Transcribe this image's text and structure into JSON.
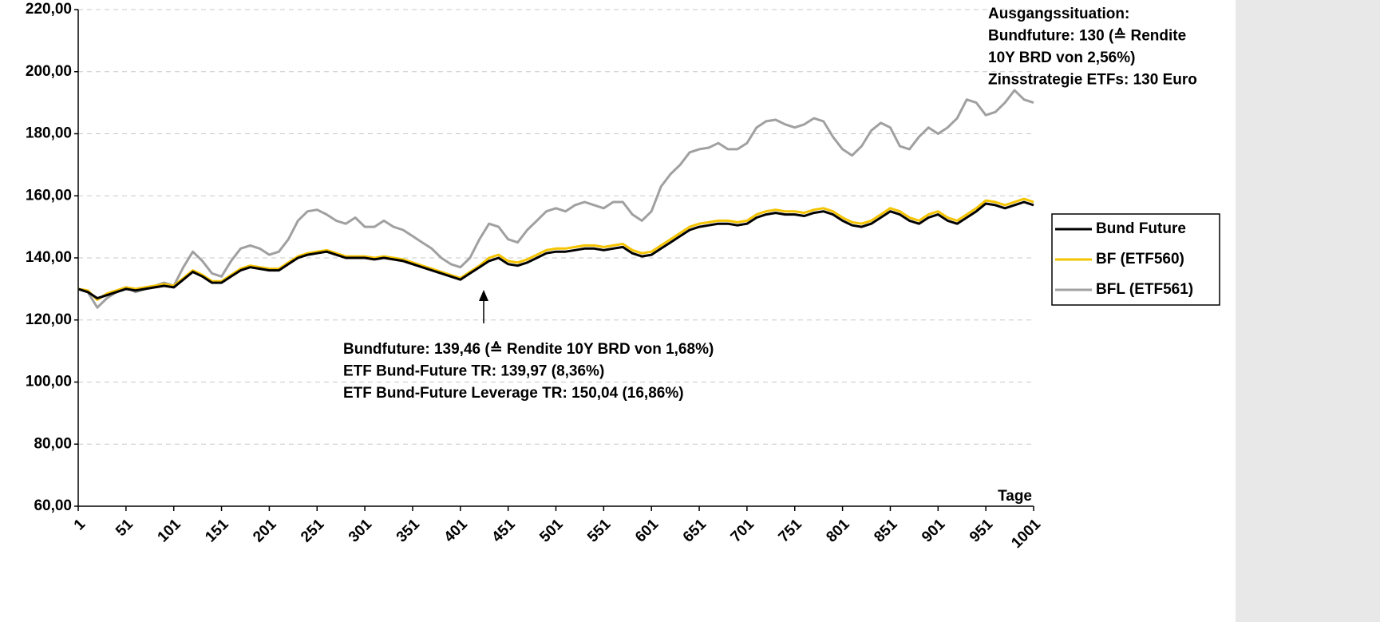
{
  "chart_data": {
    "type": "line",
    "xlabel": "Tage",
    "annotation_top": [
      "Ausgangssituation:",
      "Bundfuture: 130 (≙ Rendite",
      "10Y BRD von 2,56%)",
      "Zinsstrategie ETFs: 130 Euro"
    ],
    "annotation_mid": [
      "Bundfuture: 139,46 (≙ Rendite 10Y BRD von 1,68%)",
      "ETF Bund-Future TR: 139,97 (8,36%)",
      "ETF Bund-Future Leverage TR: 150,04 (16,86%)"
    ],
    "x": [
      1,
      11,
      21,
      31,
      41,
      51,
      61,
      71,
      81,
      91,
      101,
      111,
      121,
      131,
      141,
      151,
      161,
      171,
      181,
      191,
      201,
      211,
      221,
      231,
      241,
      251,
      261,
      271,
      281,
      291,
      301,
      311,
      321,
      331,
      341,
      351,
      361,
      371,
      381,
      391,
      401,
      411,
      421,
      431,
      441,
      451,
      461,
      471,
      481,
      491,
      501,
      511,
      521,
      531,
      541,
      551,
      561,
      571,
      581,
      591,
      601,
      611,
      621,
      631,
      641,
      651,
      661,
      671,
      681,
      691,
      701,
      711,
      721,
      731,
      741,
      751,
      761,
      771,
      781,
      791,
      801,
      811,
      821,
      831,
      841,
      851,
      861,
      871,
      881,
      891,
      901,
      911,
      921,
      931,
      941,
      951,
      961,
      971,
      981,
      991,
      1001
    ],
    "series": [
      {
        "name": "BFL (ETF561)",
        "color": "#a0a0a0",
        "values": [
          130,
          129,
          124,
          127,
          129,
          130.5,
          129,
          130,
          131,
          132,
          131,
          137,
          142,
          139,
          135,
          134,
          139,
          143,
          144,
          143,
          141,
          142,
          146,
          152,
          155,
          155.5,
          154,
          152,
          151,
          153,
          150,
          150,
          152,
          150,
          149,
          147,
          145,
          143,
          140,
          138,
          137,
          140,
          146,
          151,
          150,
          146,
          145,
          149,
          152,
          155,
          156,
          155,
          157,
          158,
          157,
          156,
          158,
          158,
          154,
          152,
          155,
          163,
          167,
          170,
          174,
          175,
          175.5,
          177,
          175,
          175,
          177,
          182,
          184,
          184.5,
          183,
          182,
          183,
          185,
          184,
          179,
          175,
          173,
          176,
          181,
          183.5,
          182,
          176,
          175,
          179,
          182,
          180,
          182,
          185,
          191,
          190,
          186,
          187,
          190,
          194,
          191,
          190
        ]
      },
      {
        "name": "BF (ETF560)",
        "color": "#f5c400",
        "values": [
          130,
          129.5,
          126.5,
          128.5,
          129.5,
          130.5,
          130,
          130.5,
          131,
          131.5,
          131,
          133.5,
          136,
          134.5,
          132.5,
          132.5,
          134.5,
          136.5,
          137.5,
          137,
          136.5,
          136.5,
          138.5,
          140.5,
          141.5,
          142,
          142.5,
          141.5,
          140.5,
          140.5,
          140.5,
          140,
          140.5,
          140,
          139.5,
          138.5,
          137.5,
          136.5,
          135.5,
          134.5,
          133.5,
          135.5,
          137.5,
          140,
          141,
          139,
          138.5,
          139.5,
          141,
          142.5,
          143,
          143,
          143.5,
          144,
          144,
          143.5,
          144,
          144.5,
          142.5,
          141.5,
          142,
          144,
          146,
          148,
          150,
          151,
          151.5,
          152,
          152,
          151.5,
          152,
          154,
          155,
          155.5,
          155,
          155,
          154.5,
          155.5,
          156,
          155,
          153,
          151.5,
          151,
          152,
          154,
          156,
          155,
          153,
          152,
          154,
          155,
          153,
          152,
          154,
          156,
          158.5,
          158,
          157,
          158,
          159,
          158
        ]
      },
      {
        "name": "Bund Future",
        "color": "#000000",
        "values": [
          130,
          129,
          127,
          128,
          129,
          130,
          129.5,
          130,
          130.5,
          131,
          130.5,
          133,
          135.5,
          134,
          132,
          132,
          134,
          136,
          137,
          136.5,
          136,
          136,
          138,
          140,
          141,
          141.5,
          142,
          141,
          140,
          140,
          140,
          139.5,
          140,
          139.5,
          139,
          138,
          137,
          136,
          135,
          134,
          133,
          135,
          137,
          139,
          140,
          138,
          137.5,
          138.5,
          140,
          141.5,
          142,
          142,
          142.5,
          143,
          143,
          142.5,
          143,
          143.5,
          141.5,
          140.5,
          141,
          143,
          145,
          147,
          149,
          150,
          150.5,
          151,
          151,
          150.5,
          151,
          153,
          154,
          154.5,
          154,
          154,
          153.5,
          154.5,
          155,
          154,
          152,
          150.5,
          150,
          151,
          153,
          155,
          154,
          152,
          151,
          153,
          154,
          152,
          151,
          153,
          155,
          157.5,
          157,
          156,
          157,
          158,
          157
        ]
      }
    ],
    "legend_order": [
      2,
      1,
      0
    ],
    "xlim": [
      1,
      1001
    ],
    "xticks": [
      1,
      51,
      101,
      151,
      201,
      251,
      301,
      351,
      401,
      451,
      501,
      551,
      601,
      651,
      701,
      751,
      801,
      851,
      901,
      951,
      1001
    ],
    "ylim": [
      60,
      220
    ],
    "yticks": [
      {
        "value": 60,
        "label": "60,00"
      },
      {
        "value": 80,
        "label": "80,00"
      },
      {
        "value": 100,
        "label": "100,00"
      },
      {
        "value": 120,
        "label": "120,00"
      },
      {
        "value": 140,
        "label": "140,00"
      },
      {
        "value": 160,
        "label": "160,00"
      },
      {
        "value": 180,
        "label": "180,00"
      },
      {
        "value": 200,
        "label": "200,00"
      },
      {
        "value": 220,
        "label": "220,00"
      }
    ],
    "grid": true
  }
}
